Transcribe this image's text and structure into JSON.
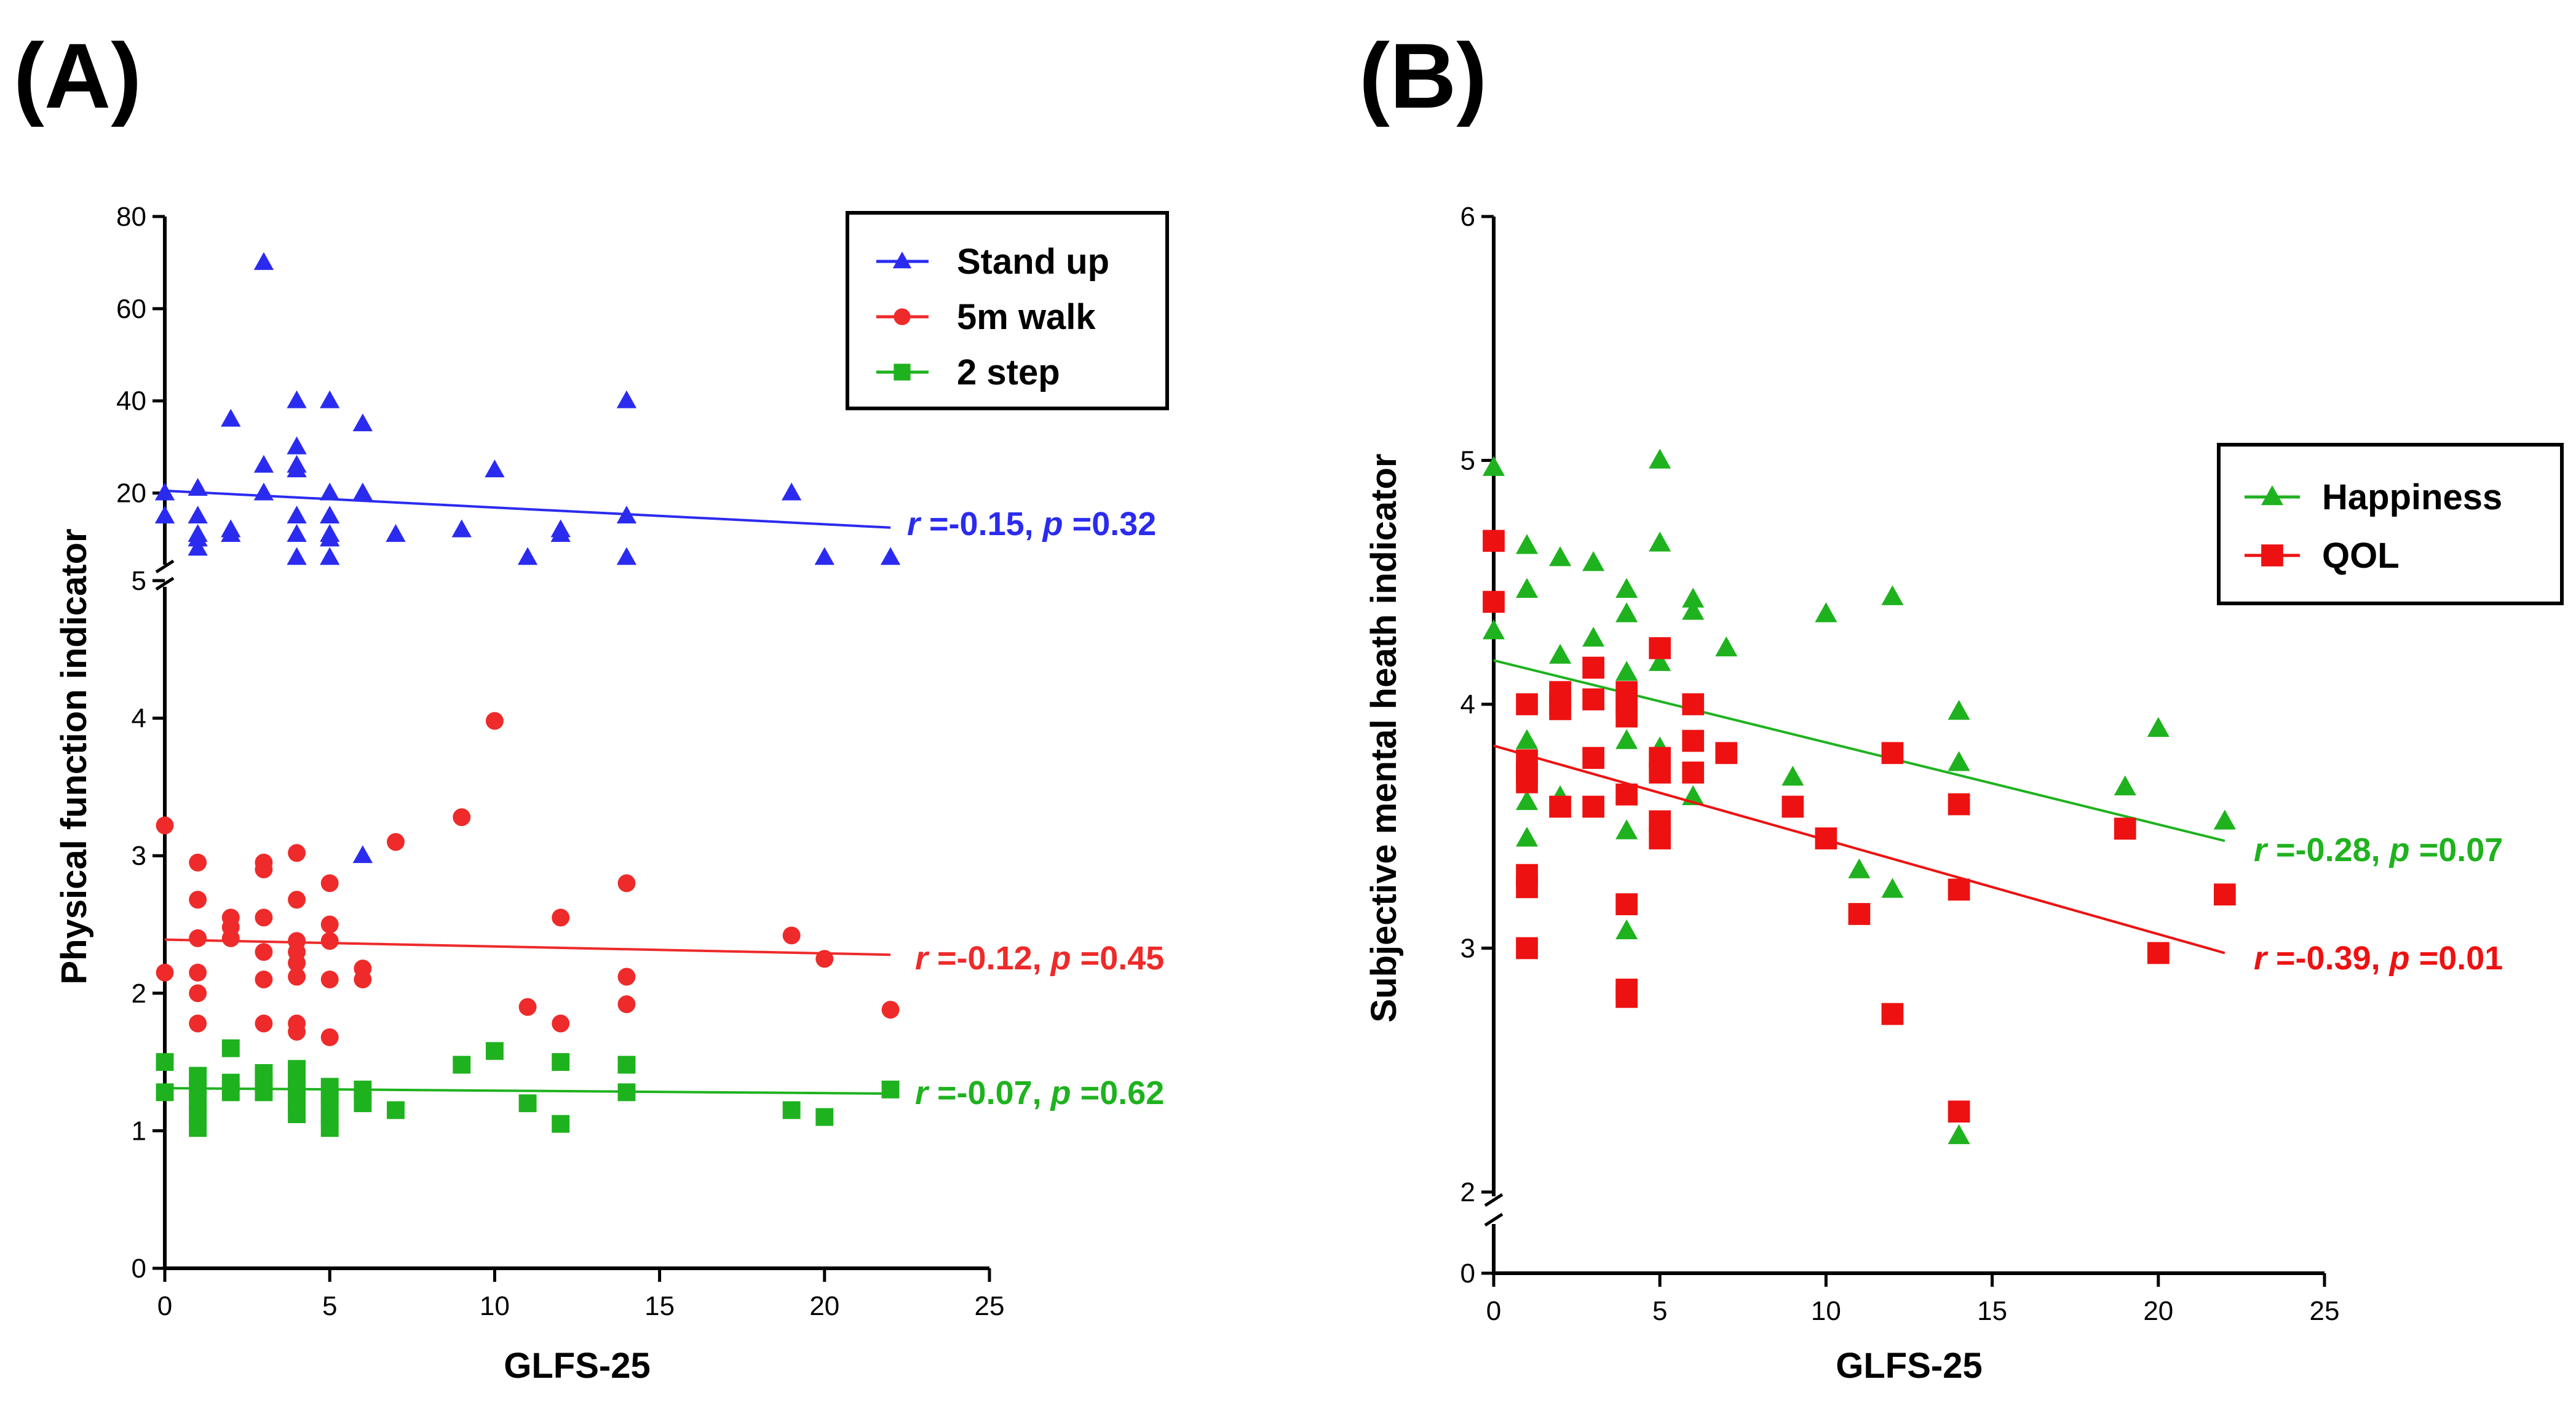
{
  "panel_labels": [
    "(A)",
    "(B)"
  ],
  "chart_data": [
    {
      "panel": "(A)",
      "type": "scatter",
      "xlabel": "GLFS-25",
      "ylabel": "Physical function indicator",
      "xlim": [
        0,
        25
      ],
      "xticks": [
        0,
        5,
        10,
        15,
        20,
        25
      ],
      "y_axis_broken": true,
      "y_lower_ticks": [
        0,
        1,
        2,
        3,
        4,
        5
      ],
      "y_upper_ticks": [
        20,
        40,
        60,
        80
      ],
      "legend_position": "top-right",
      "series": [
        {
          "name": "Stand up",
          "color": "#2b2bf0",
          "marker": "triangle",
          "points": [
            [
              0,
              20
            ],
            [
              0,
              15
            ],
            [
              1,
              21
            ],
            [
              1,
              15
            ],
            [
              1,
              11
            ],
            [
              1,
              10
            ],
            [
              1,
              8
            ],
            [
              2,
              36
            ],
            [
              2,
              12
            ],
            [
              2,
              11
            ],
            [
              3,
              70
            ],
            [
              3,
              26
            ],
            [
              3,
              20
            ],
            [
              4,
              40
            ],
            [
              4,
              30
            ],
            [
              4,
              26
            ],
            [
              4,
              25
            ],
            [
              4,
              15
            ],
            [
              4,
              11
            ],
            [
              4,
              6
            ],
            [
              5,
              40
            ],
            [
              5,
              20
            ],
            [
              5,
              15
            ],
            [
              5,
              11
            ],
            [
              5,
              10
            ],
            [
              5,
              6
            ],
            [
              6,
              35
            ],
            [
              6,
              20
            ],
            [
              7,
              11
            ],
            [
              9,
              12
            ],
            [
              10,
              25
            ],
            [
              11,
              6
            ],
            [
              12,
              12
            ],
            [
              12,
              11
            ],
            [
              14,
              40
            ],
            [
              14,
              15
            ],
            [
              14,
              6
            ],
            [
              19,
              20
            ],
            [
              20,
              6
            ],
            [
              22,
              6
            ],
            [
              6,
              3.0
            ]
          ],
          "fit": [
            [
              0,
              20.5
            ],
            [
              22,
              12.5
            ]
          ],
          "annotation": {
            "r": "-0.15",
            "p": "0.32"
          }
        },
        {
          "name": "5m walk",
          "color": "#ee2a2a",
          "marker": "circle",
          "points": [
            [
              0,
              3.22
            ],
            [
              0,
              2.15
            ],
            [
              1,
              2.95
            ],
            [
              1,
              2.68
            ],
            [
              1,
              2.4
            ],
            [
              1,
              2.15
            ],
            [
              1,
              2.0
            ],
            [
              1,
              1.78
            ],
            [
              2,
              2.55
            ],
            [
              2,
              2.48
            ],
            [
              2,
              2.4
            ],
            [
              3,
              2.95
            ],
            [
              3,
              2.9
            ],
            [
              3,
              2.55
            ],
            [
              3,
              2.3
            ],
            [
              3,
              2.1
            ],
            [
              3,
              1.78
            ],
            [
              4,
              3.02
            ],
            [
              4,
              2.68
            ],
            [
              4,
              2.38
            ],
            [
              4,
              2.3
            ],
            [
              4,
              2.22
            ],
            [
              4,
              2.12
            ],
            [
              4,
              1.78
            ],
            [
              4,
              1.72
            ],
            [
              5,
              2.8
            ],
            [
              5,
              2.5
            ],
            [
              5,
              2.38
            ],
            [
              5,
              2.1
            ],
            [
              5,
              1.68
            ],
            [
              5,
              1.1
            ],
            [
              6,
              2.18
            ],
            [
              6,
              2.1
            ],
            [
              7,
              3.1
            ],
            [
              9,
              3.28
            ],
            [
              10,
              3.98
            ],
            [
              11,
              1.9
            ],
            [
              12,
              2.55
            ],
            [
              12,
              1.78
            ],
            [
              14,
              2.8
            ],
            [
              14,
              2.12
            ],
            [
              14,
              1.92
            ],
            [
              19,
              2.42
            ],
            [
              20,
              2.25
            ],
            [
              22,
              1.88
            ]
          ],
          "fit": [
            [
              0,
              2.39
            ],
            [
              22,
              2.28
            ]
          ],
          "annotation": {
            "r": "-0.12",
            "p": "0.45"
          }
        },
        {
          "name": "2 step",
          "color": "#1fb21f",
          "marker": "square",
          "points": [
            [
              0,
              1.5
            ],
            [
              0,
              1.28
            ],
            [
              1,
              1.4
            ],
            [
              1,
              1.3
            ],
            [
              1,
              1.22
            ],
            [
              1,
              1.12
            ],
            [
              1,
              1.02
            ],
            [
              2,
              1.6
            ],
            [
              2,
              1.35
            ],
            [
              2,
              1.28
            ],
            [
              3,
              1.42
            ],
            [
              3,
              1.35
            ],
            [
              3,
              1.28
            ],
            [
              4,
              1.45
            ],
            [
              4,
              1.38
            ],
            [
              4,
              1.3
            ],
            [
              4,
              1.2
            ],
            [
              4,
              1.12
            ],
            [
              5,
              1.32
            ],
            [
              5,
              1.25
            ],
            [
              5,
              1.18
            ],
            [
              5,
              1.1
            ],
            [
              5,
              1.02
            ],
            [
              6,
              1.3
            ],
            [
              6,
              1.2
            ],
            [
              7,
              1.15
            ],
            [
              9,
              1.48
            ],
            [
              10,
              1.58
            ],
            [
              11,
              1.2
            ],
            [
              12,
              1.5
            ],
            [
              12,
              1.05
            ],
            [
              14,
              1.48
            ],
            [
              14,
              1.28
            ],
            [
              19,
              1.15
            ],
            [
              20,
              1.1
            ],
            [
              22,
              1.3
            ]
          ],
          "fit": [
            [
              0,
              1.31
            ],
            [
              22,
              1.27
            ]
          ],
          "annotation": {
            "r": "-0.07",
            "p": "0.62"
          }
        }
      ]
    },
    {
      "panel": "(B)",
      "type": "scatter",
      "xlabel": "GLFS-25",
      "ylabel": "Subjective mental heath indicator",
      "xlim": [
        0,
        25
      ],
      "xticks": [
        0,
        5,
        10,
        15,
        20,
        25
      ],
      "y_axis_broken": true,
      "y_ticks": [
        0,
        2,
        3,
        4,
        5,
        6
      ],
      "legend_position": "middle-right",
      "series": [
        {
          "name": "Happiness",
          "color": "#1fb21f",
          "marker": "triangle",
          "points": [
            [
              0,
              4.97
            ],
            [
              0,
              4.3
            ],
            [
              1,
              4.65
            ],
            [
              1,
              4.47
            ],
            [
              1,
              3.85
            ],
            [
              1,
              3.6
            ],
            [
              1,
              3.45
            ],
            [
              2,
              4.6
            ],
            [
              2,
              4.2
            ],
            [
              2,
              3.62
            ],
            [
              3,
              4.58
            ],
            [
              3,
              4.27
            ],
            [
              3,
              3.57
            ],
            [
              4,
              4.47
            ],
            [
              4,
              4.37
            ],
            [
              4,
              4.13
            ],
            [
              4,
              3.85
            ],
            [
              4,
              3.62
            ],
            [
              4,
              3.48
            ],
            [
              4,
              3.07
            ],
            [
              5,
              5.0
            ],
            [
              5,
              4.66
            ],
            [
              5,
              4.17
            ],
            [
              5,
              3.82
            ],
            [
              6,
              4.43
            ],
            [
              6,
              4.38
            ],
            [
              6,
              3.62
            ],
            [
              7,
              4.23
            ],
            [
              9,
              3.7
            ],
            [
              10,
              4.37
            ],
            [
              11,
              3.32
            ],
            [
              12,
              4.44
            ],
            [
              12,
              3.24
            ],
            [
              14,
              3.97
            ],
            [
              14,
              3.76
            ],
            [
              14,
              2.23
            ],
            [
              19,
              3.66
            ],
            [
              20,
              3.9
            ],
            [
              22,
              3.52
            ]
          ],
          "fit": [
            [
              0,
              4.18
            ],
            [
              22,
              3.44
            ]
          ],
          "annotation": {
            "r": "-0.28",
            "p": "0.07"
          }
        },
        {
          "name": "QOL",
          "color": "#ee1111",
          "marker": "square",
          "points": [
            [
              0,
              4.67
            ],
            [
              0,
              4.42
            ],
            [
              1,
              4.0
            ],
            [
              1,
              3.77
            ],
            [
              1,
              3.72
            ],
            [
              1,
              3.68
            ],
            [
              1,
              3.3
            ],
            [
              1,
              3.25
            ],
            [
              1,
              3.0
            ],
            [
              2,
              4.05
            ],
            [
              2,
              4.0
            ],
            [
              2,
              3.98
            ],
            [
              2,
              3.58
            ],
            [
              3,
              4.15
            ],
            [
              3,
              4.02
            ],
            [
              3,
              3.78
            ],
            [
              3,
              3.58
            ],
            [
              4,
              4.05
            ],
            [
              4,
              4.0
            ],
            [
              4,
              3.95
            ],
            [
              4,
              3.63
            ],
            [
              4,
              3.18
            ],
            [
              4,
              2.83
            ],
            [
              4,
              2.8
            ],
            [
              5,
              4.23
            ],
            [
              5,
              3.78
            ],
            [
              5,
              3.72
            ],
            [
              5,
              3.52
            ],
            [
              5,
              3.45
            ],
            [
              6,
              4.0
            ],
            [
              6,
              3.85
            ],
            [
              6,
              3.72
            ],
            [
              7,
              3.8
            ],
            [
              9,
              3.58
            ],
            [
              10,
              3.45
            ],
            [
              11,
              3.14
            ],
            [
              12,
              3.8
            ],
            [
              12,
              2.73
            ],
            [
              14,
              3.59
            ],
            [
              14,
              3.24
            ],
            [
              14,
              2.33
            ],
            [
              19,
              3.49
            ],
            [
              20,
              2.98
            ],
            [
              22,
              3.22
            ]
          ],
          "fit": [
            [
              0,
              3.83
            ],
            [
              22,
              2.98
            ]
          ],
          "annotation": {
            "r": "-0.39",
            "p": "0.01"
          }
        }
      ]
    }
  ]
}
